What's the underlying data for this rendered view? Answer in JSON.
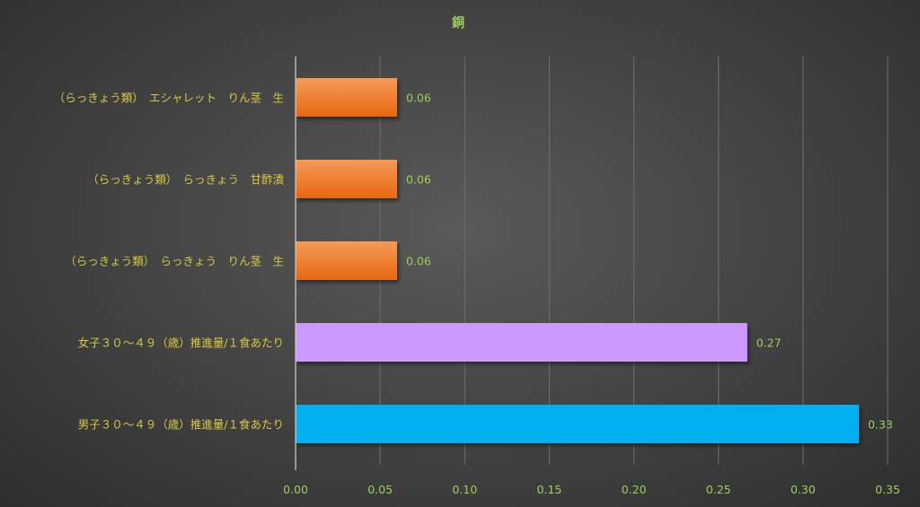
{
  "chart_data": {
    "type": "bar",
    "orientation": "horizontal",
    "title": "銅",
    "categories": [
      "（らっきょう類）　エシャレット　りん茎　生",
      "（らっきょう類）　らっきょう　甘酢漬",
      "（らっきょう類）　らっきょう　りん茎　生",
      "女子３０～４９（歳）推進量/１食あたり",
      "男子３０～４９（歳）推進量/１食あたり"
    ],
    "values": [
      0.06,
      0.06,
      0.06,
      0.267,
      0.333
    ],
    "value_labels": [
      "0.06",
      "0.06",
      "0.06",
      "0.27",
      "0.33"
    ],
    "bar_colors": [
      "#f07a24",
      "#f07a24",
      "#f07a24",
      "#cc99ff",
      "#00b0f0"
    ],
    "xlim": [
      0,
      0.35
    ],
    "xticks": [
      "0.00",
      "0.05",
      "0.10",
      "0.15",
      "0.20",
      "0.25",
      "0.30",
      "0.35"
    ],
    "grid": true,
    "legend": false
  }
}
